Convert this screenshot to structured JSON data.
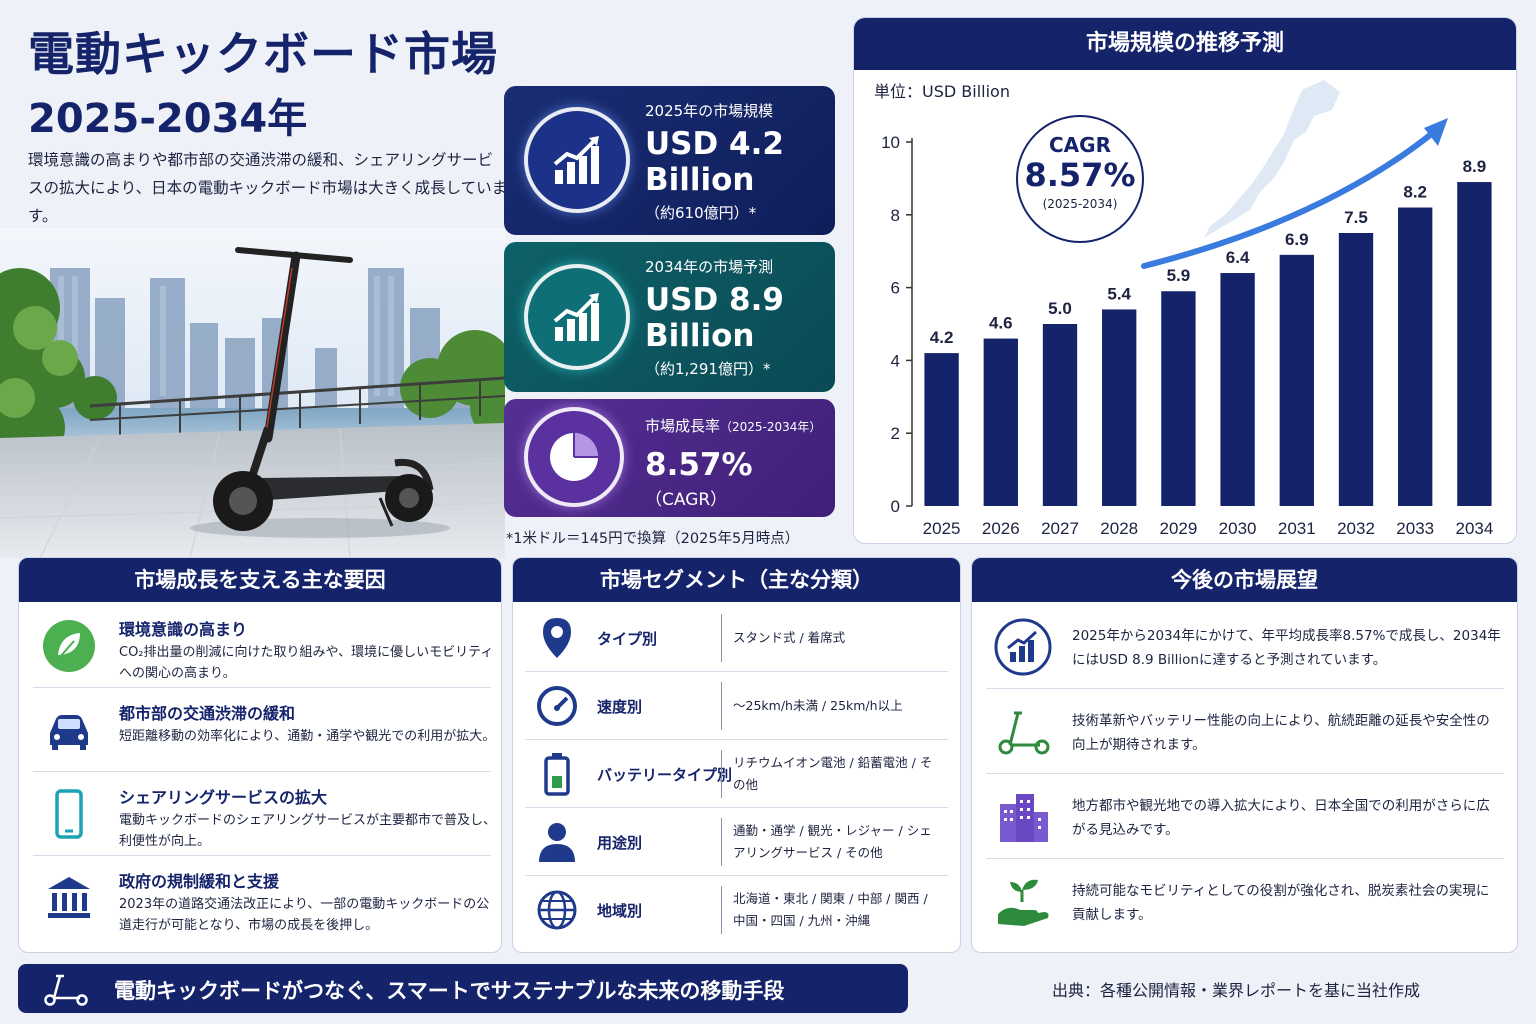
{
  "header": {
    "title": "電動キックボード市場",
    "years": "2025-2034年",
    "intro": "環境意識の高まりや都市部の交通渋滞の緩和、シェアリングサービスの拡大により、日本の電動キックボード市場は大きく成長しています。"
  },
  "stats": {
    "s2025": {
      "label": "2025年の市場規模",
      "value": "USD 4.2 Billion",
      "note": "（約610億円）*"
    },
    "s2034": {
      "label": "2034年の市場予測",
      "value": "USD 8.9 Billion",
      "note": "（約1,291億円）*"
    },
    "cagr": {
      "label": "市場成長率",
      "period": "（2025-2034年）",
      "value": "8.57%",
      "note": "（CAGR）"
    }
  },
  "footnote": "*1米ドル＝145円で換算（2025年5月時点）",
  "chart_panel": {
    "title": "市場規模の推移予測",
    "unit": "単位：USD Billion",
    "cagr_label": "CAGR",
    "cagr_value": "8.57%",
    "cagr_period": "(2025-2034)"
  },
  "chart_data": {
    "type": "bar",
    "title": "市場規模の推移予測",
    "ylabel": "単位：USD Billion",
    "xlabel": "",
    "categories": [
      "2025",
      "2026",
      "2027",
      "2028",
      "2029",
      "2030",
      "2031",
      "2032",
      "2033",
      "2034"
    ],
    "values": [
      4.2,
      4.6,
      5.0,
      5.4,
      5.9,
      6.4,
      6.9,
      7.5,
      8.2,
      8.9
    ],
    "value_labels": [
      "4.2",
      "4.6",
      "5.0",
      "5.4",
      "5.9",
      "6.4",
      "6.9",
      "7.5",
      "8.2",
      "8.9"
    ],
    "ylim": [
      0,
      10
    ],
    "yticks": [
      0,
      2,
      4,
      6,
      8,
      10
    ],
    "grid": false,
    "bar_color": "#15236b",
    "trend_arrow_color": "#3a7be0"
  },
  "factors": {
    "title": "市場成長を支える主な要因",
    "items": [
      {
        "icon": "leaf-icon",
        "title": "環境意識の高まり",
        "desc": "CO₂排出量の削減に向けた取り組みや、環境に優しいモビリティへの関心の高まり。"
      },
      {
        "icon": "car-icon",
        "title": "都市部の交通渋滞の緩和",
        "desc": "短距離移動の効率化により、通勤・通学や観光での利用が拡大。"
      },
      {
        "icon": "smartphone-icon",
        "title": "シェアリングサービスの拡大",
        "desc": "電動キックボードのシェアリングサービスが主要都市で普及し、利便性が向上。"
      },
      {
        "icon": "government-icon",
        "title": "政府の規制緩和と支援",
        "desc": "2023年の道路交通法改正により、一部の電動キックボードの公道走行が可能となり、市場の成長を後押し。"
      }
    ]
  },
  "segments": {
    "title": "市場セグメント（主な分類）",
    "items": [
      {
        "icon": "location-pin-icon",
        "name": "タイプ別",
        "value": "スタンド式 / 着席式"
      },
      {
        "icon": "speedometer-icon",
        "name": "速度別",
        "value": "～25km/h未満 / 25km/h以上"
      },
      {
        "icon": "battery-icon",
        "name": "バッテリータイプ別",
        "value": "リチウムイオン電池 / 鉛蓄電池 / その他"
      },
      {
        "icon": "user-icon",
        "name": "用途別",
        "value": "通勤・通学 / 観光・レジャー / シェアリングサービス / その他"
      },
      {
        "icon": "globe-icon",
        "name": "地域別",
        "value": "北海道・東北 / 関東 / 中部 / 関西 / 中国・四国 / 九州・沖縄"
      }
    ]
  },
  "outlook": {
    "title": "今後の市場展望",
    "items": [
      {
        "icon": "growth-chart-icon",
        "text": "2025年から2034年にかけて、年平均成長率8.57%で成長し、2034年にはUSD 8.9 Billionに達すると予測されています。"
      },
      {
        "icon": "scooter-icon",
        "text": "技術革新やバッテリー性能の向上により、航続距離の延長や安全性の向上が期待されます。"
      },
      {
        "icon": "buildings-icon",
        "text": "地方都市や観光地での導入拡大により、日本全国での利用がさらに広がる見込みです。"
      },
      {
        "icon": "sprout-hand-icon",
        "text": "持続可能なモビリティとしての役割が強化され、脱炭素社会の実現に貢献します。"
      }
    ]
  },
  "banner": {
    "text": "電動キックボードがつなぐ、スマートでサステナブルな未来の移動手段"
  },
  "source": "出典：各種公開情報・業界レポートを基に当社作成"
}
